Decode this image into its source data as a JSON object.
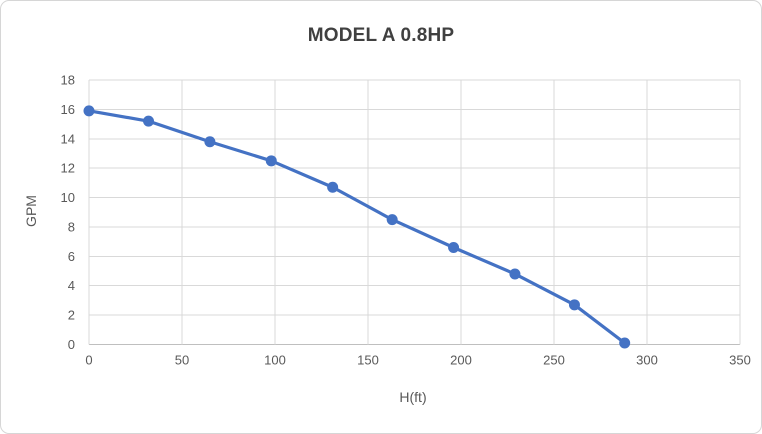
{
  "chart": {
    "title": "MODEL A 0.8HP",
    "x_axis_title": "H(ft)",
    "y_axis_title": "GPM"
  },
  "chart_data": {
    "type": "line",
    "title": "MODEL A 0.8HP",
    "xlabel": "H(ft)",
    "ylabel": "GPM",
    "x": [
      0,
      32,
      65,
      98,
      131,
      163,
      196,
      229,
      261,
      288
    ],
    "y": [
      15.9,
      15.2,
      13.8,
      12.5,
      10.7,
      8.5,
      6.6,
      4.8,
      2.7,
      0.1
    ],
    "xlim": [
      0,
      350
    ],
    "ylim": [
      0,
      18
    ],
    "x_ticks": [
      0,
      50,
      100,
      150,
      200,
      250,
      300,
      350
    ],
    "y_ticks": [
      0,
      2,
      4,
      6,
      8,
      10,
      12,
      14,
      16,
      18
    ],
    "grid": true,
    "legend": "none",
    "line_color": "#4472C4",
    "marker": "circle",
    "marker_color": "#4472C4",
    "gridline_color": "#d9d9d9",
    "axis_line_color": "#bfbfbf",
    "tick_label_color": "#595959",
    "title_color": "#404040"
  }
}
